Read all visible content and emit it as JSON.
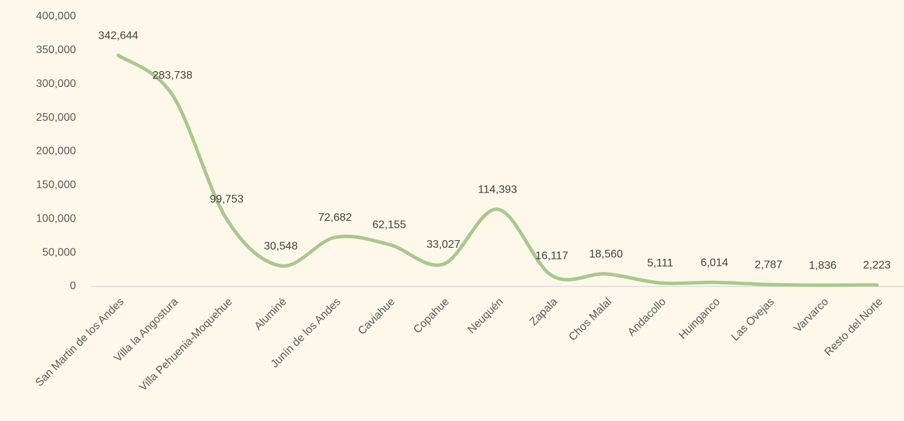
{
  "chart_data": {
    "type": "line",
    "categories": [
      "San Martin de los Andes",
      "Villa la Angostura",
      "Villa Pehuenia-Moquehue",
      "Aluminé",
      "Junín de los Andes",
      "Caviahue",
      "Copahue",
      "Neuquén",
      "Zapala",
      "Chos Malal",
      "Andacollo",
      "Huinganco",
      "Las Ovejas",
      "Varvarco",
      "Resto del Norte"
    ],
    "series": [
      {
        "color": "#a9c88f",
        "values": [
          342644,
          283738,
          99753,
          30548,
          72682,
          62155,
          33027,
          114393,
          16117,
          18560,
          5111,
          6014,
          2787,
          1836,
          2223
        ],
        "value_labels": [
          "342,644",
          "283,738",
          "99,753",
          "30,548",
          "72,682",
          "62,155",
          "33,027",
          "114,393",
          "16,117",
          "18,560",
          "5,111",
          "6,014",
          "2,787",
          "1,836",
          "2,223"
        ]
      }
    ],
    "ylim": [
      0,
      400000
    ],
    "yticks": [
      0,
      {
        "value": 50000,
        "label": "50,000"
      },
      {
        "value": 100000,
        "label": "100,000"
      },
      {
        "value": 150000,
        "label": "150,000"
      },
      {
        "value": 200000,
        "label": "200,000"
      },
      {
        "value": 250000,
        "label": "250,000"
      },
      {
        "value": 300000,
        "label": "300,000"
      },
      {
        "value": 350000,
        "label": "350,000"
      },
      {
        "value": 400000,
        "label": "400,000"
      }
    ],
    "smooth": true
  }
}
